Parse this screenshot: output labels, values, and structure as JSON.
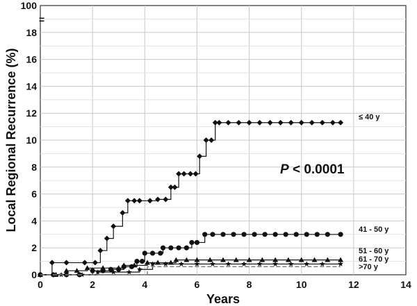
{
  "chart_data": {
    "type": "line",
    "title": "",
    "xlabel": "Years",
    "ylabel": "Local Regional Recurrence (%)",
    "xlim": [
      0,
      14
    ],
    "ylim": [
      0,
      20
    ],
    "y_axis_break": {
      "shown": true,
      "top_tick_label": "100"
    },
    "x_ticks": [
      "0",
      "2",
      "4",
      "6",
      "8",
      "10",
      "12",
      "14"
    ],
    "y_ticks": [
      "0",
      "2",
      "4",
      "6",
      "8",
      "10",
      "12",
      "14",
      "16",
      "18"
    ],
    "y_top_label": "100",
    "grid": true,
    "annotation": {
      "p_label": "P",
      "p_rest": " < 0.0001"
    },
    "series": [
      {
        "name": "≤ 40 y",
        "color": "#111111",
        "marker": "diamond",
        "steps": [
          [
            0,
            0
          ],
          [
            0.45,
            0.9
          ],
          [
            2.3,
            1.8
          ],
          [
            2.55,
            2.7
          ],
          [
            2.8,
            3.6
          ],
          [
            3.15,
            4.6
          ],
          [
            3.35,
            5.5
          ],
          [
            4.5,
            5.6
          ],
          [
            5.0,
            6.5
          ],
          [
            5.3,
            7.5
          ],
          [
            6.1,
            8.8
          ],
          [
            6.35,
            10.0
          ],
          [
            6.7,
            11.3
          ],
          [
            11.5,
            11.3
          ]
        ],
        "markers_x": [
          0,
          0.45,
          1.0,
          1.7,
          2.1,
          2.3,
          2.55,
          2.8,
          3.15,
          3.35,
          3.6,
          3.8,
          4.2,
          4.5,
          4.8,
          5.0,
          5.15,
          5.3,
          5.5,
          5.75,
          5.95,
          6.1,
          6.35,
          6.55,
          6.7,
          6.85,
          7.2,
          7.6,
          8.0,
          8.4,
          8.8,
          9.2,
          9.6,
          10.0,
          10.4,
          10.8,
          11.2,
          11.5
        ]
      },
      {
        "name": "41 - 50 y",
        "color": "#111111",
        "marker": "circle",
        "steps": [
          [
            0,
            0
          ],
          [
            2.0,
            0.3
          ],
          [
            2.7,
            0.4
          ],
          [
            3.2,
            0.6
          ],
          [
            3.7,
            1.0
          ],
          [
            4.0,
            1.6
          ],
          [
            4.7,
            2.0
          ],
          [
            5.8,
            2.4
          ],
          [
            6.3,
            3.0
          ],
          [
            11.5,
            3.0
          ]
        ],
        "markers_x": [
          0,
          0.5,
          1.0,
          1.5,
          2.0,
          2.4,
          2.7,
          3.0,
          3.2,
          3.5,
          3.7,
          3.9,
          4.0,
          4.3,
          4.6,
          4.7,
          5.0,
          5.3,
          5.6,
          5.8,
          6.0,
          6.3,
          6.6,
          7.0,
          7.4,
          7.8,
          8.2,
          8.6,
          9.0,
          9.4,
          9.8,
          10.2,
          10.6,
          11.0,
          11.5
        ]
      },
      {
        "name": "51 - 60 y",
        "color": "#111111",
        "marker": "triangle",
        "steps": [
          [
            0,
            0
          ],
          [
            1.0,
            0.3
          ],
          [
            1.8,
            0.5
          ],
          [
            3.2,
            0.7
          ],
          [
            4.1,
            0.9
          ],
          [
            5.2,
            1.1
          ],
          [
            11.5,
            1.1
          ]
        ],
        "markers_x": [
          0,
          0.6,
          1.0,
          1.4,
          1.8,
          2.4,
          3.0,
          3.2,
          3.6,
          4.1,
          4.5,
          5.0,
          5.2,
          5.6,
          6.0,
          6.5,
          7.0,
          7.5,
          8.0,
          8.5,
          9.0,
          9.5,
          10.0,
          10.5,
          11.0,
          11.5
        ]
      },
      {
        "name": "61 - 70 y",
        "color": "#111111",
        "marker": "star",
        "steps": [
          [
            0,
            0
          ],
          [
            2.2,
            0.2
          ],
          [
            3.8,
            0.4
          ],
          [
            4.3,
            0.8
          ],
          [
            11.5,
            0.8
          ]
        ],
        "markers_x": [
          0,
          0.8,
          1.6,
          2.2,
          2.8,
          3.4,
          3.8,
          4.3,
          4.8,
          5.4,
          6.0,
          6.6,
          7.2,
          7.8,
          8.4,
          9.0,
          9.6,
          10.2,
          10.8,
          11.5
        ]
      },
      {
        "name": ">70 y",
        "color": "#777777",
        "marker": "none",
        "steps": [
          [
            0,
            0
          ],
          [
            4.0,
            0
          ],
          [
            4.1,
            0.6
          ],
          [
            11.5,
            0.6
          ]
        ],
        "markers_x": []
      }
    ]
  }
}
